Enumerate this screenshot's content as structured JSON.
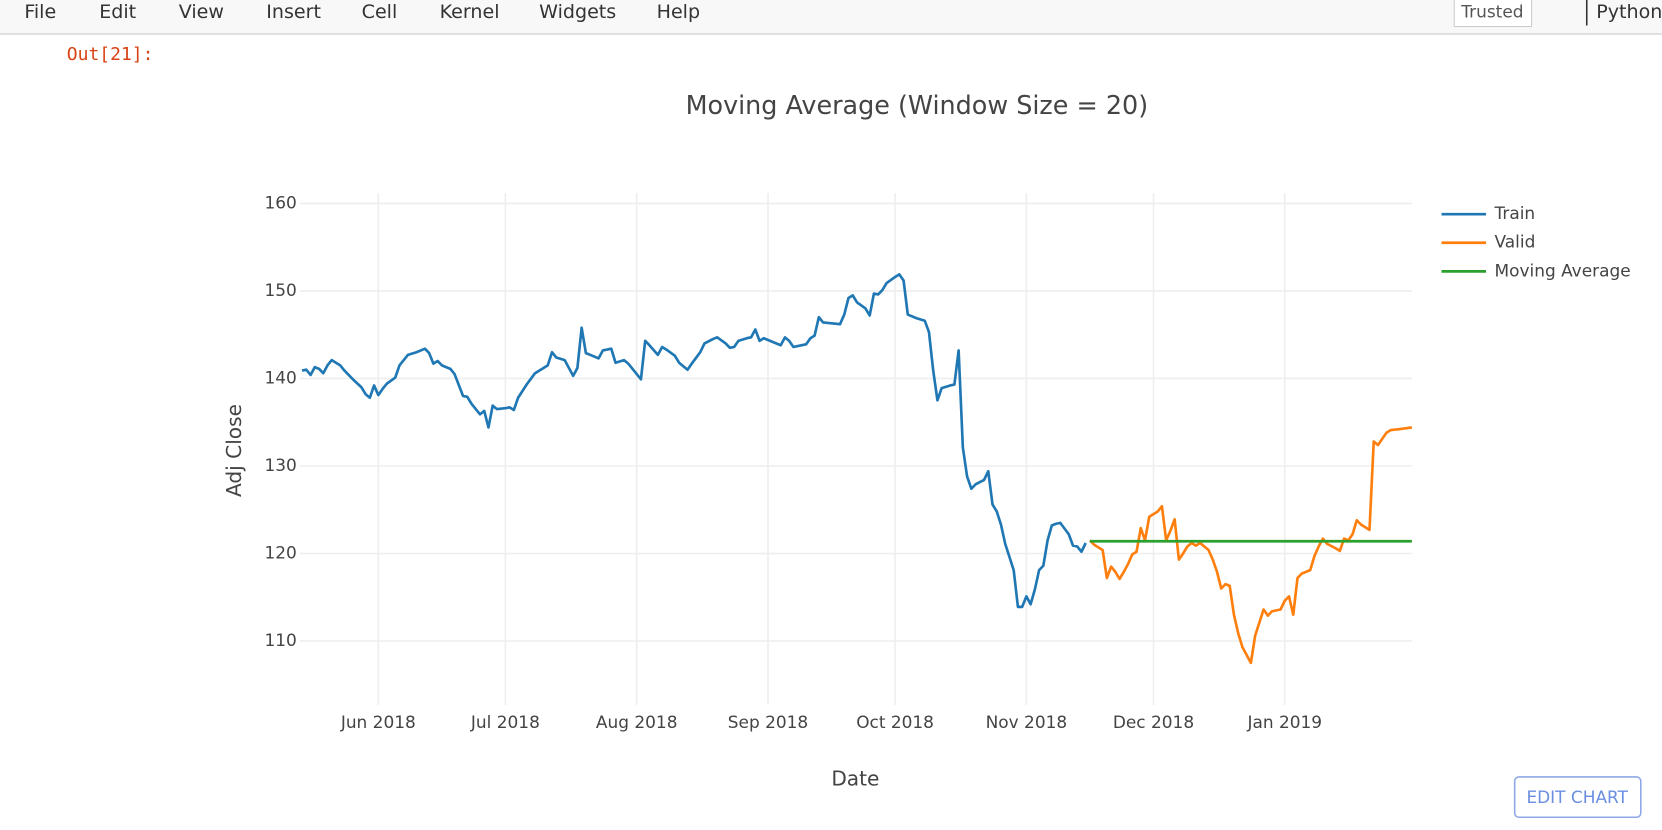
{
  "menu": [
    "File",
    "Edit",
    "View",
    "Insert",
    "Cell",
    "Kernel",
    "Widgets",
    "Help"
  ],
  "trusted": "Trusted",
  "kernel": "Python",
  "prompt": "Out[21]:",
  "edit_chart": "EDIT CHART",
  "chart_data": {
    "type": "line",
    "title": "Moving Average (Window Size = 20)",
    "x_label": "Date",
    "y_label": "Adj Close",
    "xlim": [
      12.5,
      275
    ],
    "xticks": [
      {
        "value": 31,
        "label": "Jun 2018"
      },
      {
        "value": 61,
        "label": "Jul 2018"
      },
      {
        "value": 92,
        "label": "Aug 2018"
      },
      {
        "value": 123,
        "label": "Sep 2018"
      },
      {
        "value": 153,
        "label": "Oct 2018"
      },
      {
        "value": 184,
        "label": "Nov 2018"
      },
      {
        "value": 214,
        "label": "Dec 2018"
      },
      {
        "value": 245,
        "label": "Jan 2019"
      }
    ],
    "ylim": [
      102.7,
      161.2
    ],
    "yticks": [
      110,
      120,
      130,
      140,
      150,
      160
    ],
    "grid": true,
    "legend": "right",
    "series": [
      {
        "name": "Train",
        "color": "#1f77b4",
        "x": [
          13,
          14,
          15,
          16,
          17,
          18,
          19,
          20,
          22,
          23,
          25,
          27,
          28,
          29,
          30,
          31,
          32,
          33,
          35,
          36,
          38,
          40,
          42,
          43,
          44,
          45,
          46,
          48,
          49,
          51,
          52,
          53,
          55,
          56,
          57,
          58,
          59,
          61,
          62,
          63,
          64,
          66,
          68,
          70,
          71,
          72,
          73,
          75,
          77,
          78,
          79,
          80,
          81,
          83,
          84,
          86,
          87,
          89,
          90,
          92,
          93,
          94,
          95,
          97,
          98,
          99,
          101,
          102,
          104,
          105,
          107,
          108,
          110,
          111,
          113,
          114,
          115,
          116,
          118,
          119,
          120,
          121,
          122,
          123,
          125,
          126,
          127,
          128,
          129,
          132,
          133,
          134,
          135,
          136,
          138,
          140,
          141,
          142,
          143,
          144,
          146,
          147,
          148,
          149,
          150,
          151,
          153,
          154,
          155,
          156,
          158,
          160,
          161,
          162,
          163,
          164,
          166,
          167,
          168,
          169,
          170,
          171,
          172,
          174,
          175,
          176,
          177,
          178,
          179,
          181,
          182,
          183,
          184,
          185,
          186,
          187,
          188,
          189,
          190,
          191,
          192,
          194,
          195,
          196,
          197,
          198
        ],
        "values": [
          140.9,
          141.0,
          140.4,
          141.3,
          141.1,
          140.6,
          141.5,
          142.1,
          141.5,
          140.9,
          139.9,
          139.0,
          138.2,
          137.8,
          139.2,
          138.1,
          138.8,
          139.4,
          140.1,
          141.5,
          142.7,
          143.0,
          143.4,
          142.9,
          141.7,
          142.0,
          141.5,
          141.1,
          140.5,
          138.0,
          137.9,
          137.1,
          135.9,
          136.3,
          134.4,
          136.9,
          136.5,
          136.6,
          136.7,
          136.4,
          137.8,
          139.3,
          140.6,
          141.2,
          141.5,
          143.0,
          142.4,
          142.1,
          140.3,
          141.2,
          145.8,
          142.9,
          142.7,
          142.3,
          143.2,
          143.4,
          141.8,
          142.1,
          141.7,
          140.5,
          139.9,
          144.3,
          143.8,
          142.7,
          143.6,
          143.3,
          142.6,
          141.8,
          141.0,
          141.7,
          143.0,
          144.0,
          144.5,
          144.7,
          144.0,
          143.5,
          143.6,
          144.3,
          144.6,
          144.7,
          145.6,
          144.3,
          144.6,
          144.4,
          144.0,
          143.8,
          144.7,
          144.3,
          143.6,
          143.9,
          144.6,
          144.9,
          147.0,
          146.4,
          146.3,
          146.2,
          147.3,
          149.2,
          149.5,
          148.7,
          148.0,
          147.2,
          149.7,
          149.6,
          150.1,
          150.9,
          151.6,
          151.9,
          151.2,
          147.3,
          146.9,
          146.6,
          145.3,
          140.9,
          137.5,
          138.9,
          139.2,
          139.3,
          143.2,
          132.1,
          128.8,
          127.4,
          127.9,
          128.4,
          129.4,
          125.6,
          124.8,
          123.3,
          121.1,
          118.1,
          113.9,
          113.9,
          115.1,
          114.2,
          115.9,
          118.1,
          118.6,
          121.5,
          123.2,
          123.4,
          123.5,
          122.2,
          120.9,
          120.8,
          120.2,
          121.2
        ]
      },
      {
        "name": "Valid",
        "color": "#ff7f0e",
        "x": [
          199,
          200,
          202,
          203,
          204,
          205,
          206,
          207,
          208,
          209,
          210,
          211,
          212,
          213,
          215,
          216,
          217,
          218,
          219,
          220,
          221,
          222,
          223,
          224,
          225,
          227,
          228,
          229,
          230,
          231,
          232,
          233,
          234,
          235,
          237,
          238,
          240,
          241,
          242,
          244,
          245,
          246,
          247,
          248,
          249,
          251,
          252,
          253,
          254,
          255,
          257,
          258,
          259,
          260,
          261,
          262,
          263,
          265,
          266,
          267,
          269,
          270,
          272,
          275
        ],
        "values": [
          121.5,
          121.0,
          120.4,
          117.2,
          118.5,
          117.9,
          117.1,
          117.9,
          118.8,
          119.9,
          120.2,
          122.9,
          121.5,
          124.2,
          124.8,
          125.4,
          121.5,
          122.6,
          123.9,
          119.3,
          120.0,
          120.8,
          121.2,
          120.9,
          121.2,
          120.4,
          119.3,
          117.9,
          116.0,
          116.5,
          116.3,
          113.0,
          110.9,
          109.3,
          107.5,
          110.6,
          113.6,
          112.9,
          113.4,
          113.6,
          114.6,
          115.1,
          113.0,
          117.2,
          117.7,
          118.1,
          119.7,
          120.8,
          121.7,
          121.1,
          120.6,
          120.3,
          121.7,
          121.5,
          122.2,
          123.8,
          123.3,
          122.7,
          132.8,
          132.4,
          133.8,
          134.1,
          134.2,
          134.4
        ]
      },
      {
        "name": "Moving Average",
        "color": "#2ca02c",
        "x": [
          199,
          275
        ],
        "values": [
          121.4,
          121.4
        ]
      }
    ]
  }
}
